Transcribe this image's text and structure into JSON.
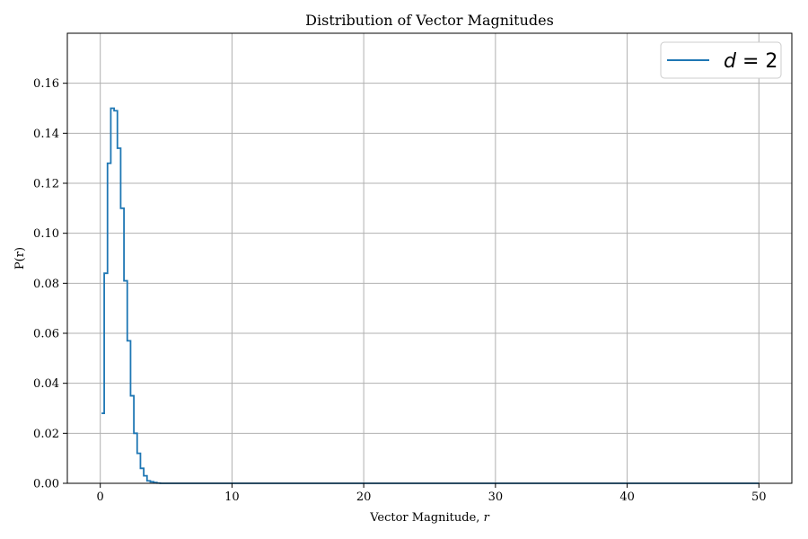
{
  "chart_data": {
    "type": "line",
    "step": true,
    "title": "Distribution of Vector Magnitudes",
    "xlabel": "Vector Magnitude, ",
    "xlabel_var": "r",
    "ylabel": "P(r)",
    "xlim": [
      -2.5,
      52.5
    ],
    "ylim": [
      0,
      0.18
    ],
    "x_ticks": [
      0,
      10,
      20,
      30,
      40,
      50
    ],
    "y_ticks": [
      0.0,
      0.02,
      0.04,
      0.06,
      0.08,
      0.1,
      0.12,
      0.14,
      0.16
    ],
    "y_tick_labels": [
      "0.00",
      "0.02",
      "0.04",
      "0.06",
      "0.08",
      "0.10",
      "0.12",
      "0.14",
      "0.16"
    ],
    "grid": true,
    "legend_position": "top-right",
    "series": [
      {
        "name_var": "d",
        "name_rest": " = 2",
        "color": "#1f77b4",
        "x": [
          0.1,
          0.3,
          0.55,
          0.8,
          1.05,
          1.3,
          1.55,
          1.8,
          2.05,
          2.3,
          2.55,
          2.8,
          3.05,
          3.3,
          3.55,
          3.8,
          4.05,
          4.3,
          4.55,
          50
        ],
        "y": [
          0.028,
          0.084,
          0.128,
          0.15,
          0.149,
          0.134,
          0.11,
          0.081,
          0.057,
          0.035,
          0.02,
          0.012,
          0.006,
          0.003,
          0.001,
          0.0006,
          0.0003,
          0.0001,
          0.0,
          0.0
        ]
      }
    ]
  }
}
